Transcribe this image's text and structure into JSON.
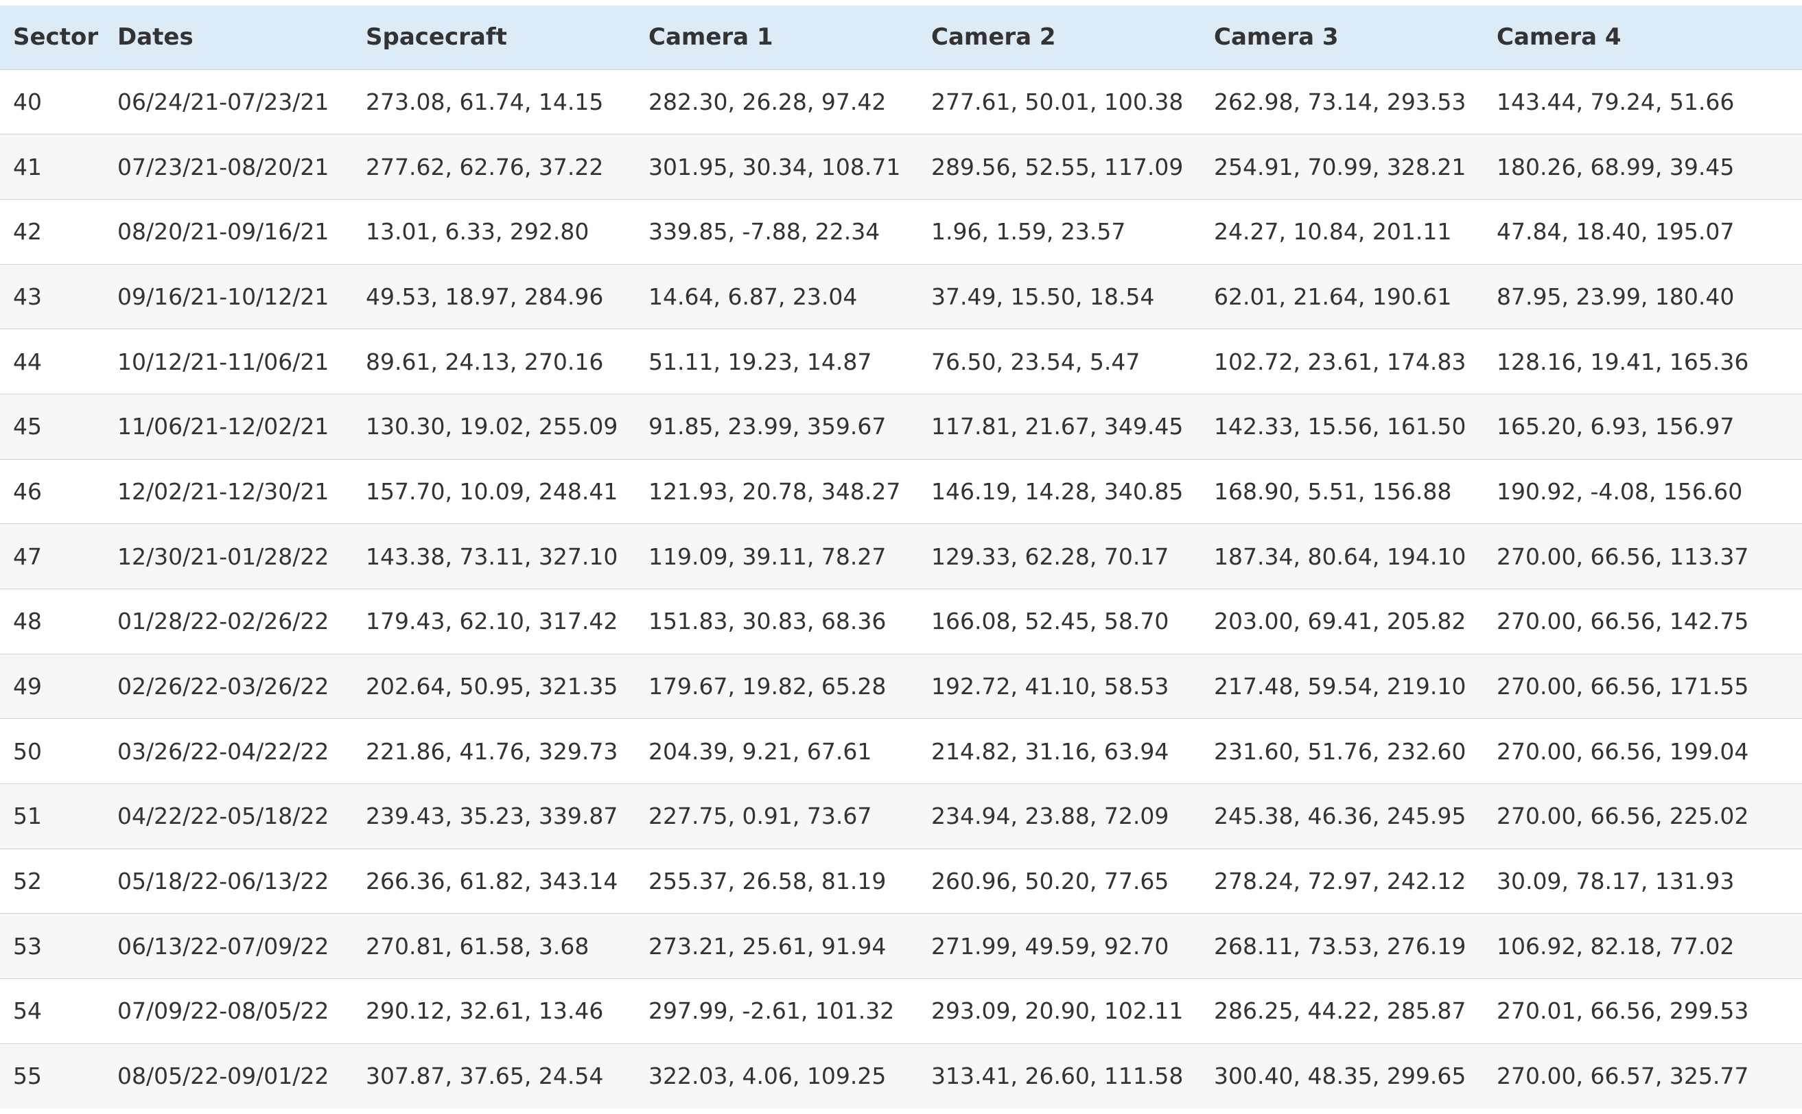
{
  "table": {
    "headers": [
      "Sector",
      "Dates",
      "Spacecraft",
      "Camera 1",
      "Camera 2",
      "Camera 3",
      "Camera 4"
    ],
    "rows": [
      [
        "40",
        "06/24/21-07/23/21",
        "273.08, 61.74, 14.15",
        "282.30, 26.28, 97.42",
        "277.61, 50.01, 100.38",
        "262.98, 73.14, 293.53",
        "143.44, 79.24, 51.66"
      ],
      [
        "41",
        "07/23/21-08/20/21",
        "277.62, 62.76, 37.22",
        "301.95, 30.34, 108.71",
        "289.56, 52.55, 117.09",
        "254.91, 70.99, 328.21",
        "180.26, 68.99, 39.45"
      ],
      [
        "42",
        "08/20/21-09/16/21",
        "13.01, 6.33, 292.80",
        "339.85, -7.88, 22.34",
        "1.96, 1.59, 23.57",
        "24.27, 10.84, 201.11",
        "47.84, 18.40, 195.07"
      ],
      [
        "43",
        "09/16/21-10/12/21",
        "49.53, 18.97, 284.96",
        "14.64, 6.87, 23.04",
        "37.49, 15.50, 18.54",
        "62.01, 21.64, 190.61",
        "87.95, 23.99, 180.40"
      ],
      [
        "44",
        "10/12/21-11/06/21",
        "89.61, 24.13, 270.16",
        "51.11, 19.23, 14.87",
        "76.50, 23.54, 5.47",
        "102.72, 23.61, 174.83",
        "128.16, 19.41, 165.36"
      ],
      [
        "45",
        "11/06/21-12/02/21",
        "130.30, 19.02, 255.09",
        "91.85, 23.99, 359.67",
        "117.81, 21.67, 349.45",
        "142.33, 15.56, 161.50",
        "165.20, 6.93, 156.97"
      ],
      [
        "46",
        "12/02/21-12/30/21",
        "157.70, 10.09, 248.41",
        "121.93, 20.78, 348.27",
        "146.19, 14.28, 340.85",
        "168.90, 5.51, 156.88",
        "190.92, -4.08, 156.60"
      ],
      [
        "47",
        "12/30/21-01/28/22",
        "143.38, 73.11, 327.10",
        "119.09, 39.11, 78.27",
        "129.33, 62.28, 70.17",
        "187.34, 80.64, 194.10",
        "270.00, 66.56, 113.37"
      ],
      [
        "48",
        "01/28/22-02/26/22",
        "179.43, 62.10, 317.42",
        "151.83, 30.83, 68.36",
        "166.08, 52.45, 58.70",
        "203.00, 69.41, 205.82",
        "270.00, 66.56, 142.75"
      ],
      [
        "49",
        "02/26/22-03/26/22",
        "202.64, 50.95, 321.35",
        "179.67, 19.82, 65.28",
        "192.72, 41.10, 58.53",
        "217.48, 59.54, 219.10",
        "270.00, 66.56, 171.55"
      ],
      [
        "50",
        "03/26/22-04/22/22",
        "221.86, 41.76, 329.73",
        "204.39, 9.21, 67.61",
        "214.82, 31.16, 63.94",
        "231.60, 51.76, 232.60",
        "270.00, 66.56, 199.04"
      ],
      [
        "51",
        "04/22/22-05/18/22",
        "239.43, 35.23, 339.87",
        "227.75, 0.91, 73.67",
        "234.94, 23.88, 72.09",
        "245.38, 46.36, 245.95",
        "270.00, 66.56, 225.02"
      ],
      [
        "52",
        "05/18/22-06/13/22",
        "266.36, 61.82, 343.14",
        "255.37, 26.58, 81.19",
        "260.96, 50.20, 77.65",
        "278.24, 72.97, 242.12",
        "30.09, 78.17, 131.93"
      ],
      [
        "53",
        "06/13/22-07/09/22",
        "270.81, 61.58, 3.68",
        "273.21, 25.61, 91.94",
        "271.99, 49.59, 92.70",
        "268.11, 73.53, 276.19",
        "106.92, 82.18, 77.02"
      ],
      [
        "54",
        "07/09/22-08/05/22",
        "290.12, 32.61, 13.46",
        "297.99, -2.61, 101.32",
        "293.09, 20.90, 102.11",
        "286.25, 44.22, 285.87",
        "270.01, 66.56, 299.53"
      ],
      [
        "55",
        "08/05/22-09/01/22",
        "307.87, 37.65, 24.54",
        "322.03, 4.06, 109.25",
        "313.41, 26.60, 111.58",
        "300.40, 48.35, 299.65",
        "270.00, 66.57, 325.77"
      ]
    ]
  }
}
